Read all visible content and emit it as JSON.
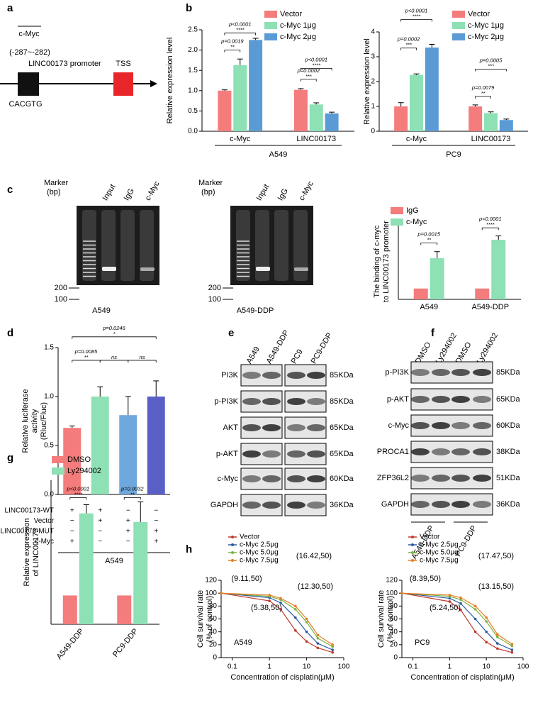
{
  "panel_labels": [
    "a",
    "b",
    "c",
    "d",
    "e",
    "f",
    "g",
    "h"
  ],
  "diagram": {
    "site": "c-Myc",
    "position": "(-287~-282)",
    "promoter": "LINC00173 promoter",
    "tss": "TSS",
    "motif": "CACGTG"
  },
  "gels": [
    {
      "marker": [
        "Marker",
        "(bp)"
      ],
      "lanes": [
        "Input",
        "IgG",
        "c-Myc"
      ],
      "sizes": [
        "200",
        "100"
      ],
      "label": "A549"
    },
    {
      "marker": [
        "Marker",
        "(bp)"
      ],
      "lanes": [
        "Input",
        "IgG",
        "c-Myc"
      ],
      "sizes": [
        "200",
        "100"
      ],
      "label": "A549-DDP"
    }
  ],
  "blots": [
    {
      "lanes": [
        "A549",
        "A549-DDP",
        "PC9",
        "PC9-DDP"
      ],
      "rows": [
        {
          "name": "PI3K",
          "size": "85KDa"
        },
        {
          "name": "p-PI3K",
          "size": "85KDa"
        },
        {
          "name": "AKT",
          "size": "65KDa"
        },
        {
          "name": "p-AKT",
          "size": "65KDa"
        },
        {
          "name": "c-Myc",
          "size": "60KDa"
        },
        {
          "name": "GAPDH",
          "size": "36KDa"
        }
      ]
    },
    {
      "lanes": [
        "DMSO",
        "Ly294002",
        "DMSO",
        "Ly294002"
      ],
      "rows": [
        {
          "name": "p-PI3K",
          "size": "85KDa"
        },
        {
          "name": "p-AKT",
          "size": "65KDa"
        },
        {
          "name": "c-Myc",
          "size": "60KDa"
        },
        {
          "name": "PROCA1",
          "size": "38KDa"
        },
        {
          "name": "ZFP36L2",
          "size": "51KDa"
        },
        {
          "name": "GAPDH",
          "size": "36KDa"
        }
      ],
      "groups": [
        "A549-DDP",
        "PC9-DDP"
      ]
    }
  ],
  "chart_data": [
    {
      "type": "bar",
      "ylabel": [
        "Relative expression level"
      ],
      "categories": [
        "c-Myc",
        "LINC00173"
      ],
      "xlabel": "A549",
      "series": [
        {
          "name": "Vector",
          "color": "#f47c7c",
          "values": [
            1.0,
            1.02
          ],
          "errors": [
            0.02,
            0.03
          ]
        },
        {
          "name": "c-Myc 1μg",
          "color": "#8ee0b5",
          "values": [
            1.63,
            0.66
          ],
          "errors": [
            0.15,
            0.04
          ]
        },
        {
          "name": "c-Myc 2μg",
          "color": "#5b9bd5",
          "values": [
            2.25,
            0.44
          ],
          "errors": [
            0.04,
            0.03
          ]
        }
      ],
      "ylim": [
        0,
        2.5
      ],
      "yticks": [
        {
          "value": 0,
          "label": "0.0"
        },
        {
          "value": 0.5,
          "label": "0.5"
        },
        {
          "value": 1,
          "label": "1.0"
        },
        {
          "value": 1.5,
          "label": "1.5"
        },
        {
          "value": 2,
          "label": "2.0"
        },
        {
          "value": 2.5,
          "label": "2.5"
        }
      ],
      "annotations": [
        {
          "p": "p<0.0001",
          "sig": "****"
        },
        {
          "p": "p=0.0019",
          "sig": "**"
        },
        {
          "p": "p<0.0001",
          "sig": "****"
        },
        {
          "p": "p=0.0002",
          "sig": "***"
        }
      ]
    },
    {
      "type": "bar",
      "ylabel": [
        "Relative expression level"
      ],
      "categories": [
        "c-Myc",
        "LINC00173"
      ],
      "xlabel": "PC9",
      "series": [
        {
          "name": "Vector",
          "color": "#f47c7c",
          "values": [
            1.0,
            1.0
          ],
          "errors": [
            0.15,
            0.06
          ]
        },
        {
          "name": "c-Myc 1μg",
          "color": "#8ee0b5",
          "values": [
            2.27,
            0.73
          ],
          "errors": [
            0.04,
            0.05
          ]
        },
        {
          "name": "c-Myc 2μg",
          "color": "#5b9bd5",
          "values": [
            3.37,
            0.45
          ],
          "errors": [
            0.13,
            0.04
          ]
        }
      ],
      "ylim": [
        0,
        4
      ],
      "yticks": [
        0,
        1,
        2,
        3,
        4
      ],
      "annotations": [
        {
          "p": "p<0.0001",
          "sig": "****"
        },
        {
          "p": "p=0.0002",
          "sig": "***"
        },
        {
          "p": "p=0.0005",
          "sig": "***"
        },
        {
          "p": "p=0.0079",
          "sig": "**"
        }
      ]
    },
    {
      "type": "bar",
      "ylabel": [
        "The binding of c-myc",
        "to LINC00173 promoter"
      ],
      "categories": [
        "A549",
        "A549-DDP"
      ],
      "series": [
        {
          "name": "IgG",
          "color": "#f47c7c",
          "values": [
            1,
            1
          ],
          "errors": [
            0,
            0
          ]
        },
        {
          "name": "c-Myc",
          "color": "#8ee0b5",
          "values": [
            3.8,
            5.5
          ],
          "errors": [
            0.6,
            0.35
          ]
        }
      ],
      "ylim": [
        0,
        7
      ],
      "annotations": [
        {
          "p": "p=0.0015",
          "sig": "**"
        },
        {
          "p": "p<0.0001",
          "sig": "****"
        }
      ]
    },
    {
      "type": "bar",
      "ylabel": [
        "Relative luciferase",
        "activity",
        "(Rluc/Fluc)"
      ],
      "xlabel": "A549",
      "values": [
        0.68,
        1.0,
        0.81,
        1.0
      ],
      "errors": [
        0.02,
        0.1,
        0.19,
        0.16
      ],
      "colors": [
        "#f47c7c",
        "#8ee0b5",
        "#6fa8dc",
        "#5a5fc8"
      ],
      "ylim": [
        0,
        1.5
      ],
      "yticks": [
        {
          "value": 0,
          "label": "0.0"
        },
        {
          "value": 0.5,
          "label": "0.5"
        },
        {
          "value": 1,
          "label": "1.0"
        },
        {
          "value": 1.5,
          "label": "1.5"
        }
      ],
      "table": [
        {
          "name": "LINC00173-WT",
          "marks": [
            "+",
            "+",
            "−",
            "−"
          ]
        },
        {
          "name": "Vector",
          "marks": [
            "−",
            "+",
            "+",
            "−"
          ]
        },
        {
          "name": "LINC00173-MUT",
          "marks": [
            "−",
            "−",
            "+",
            "+"
          ]
        },
        {
          "name": "c-Myc",
          "marks": [
            "+",
            "−",
            "−",
            "+"
          ]
        }
      ],
      "annotations": [
        {
          "p": "p=0.0246",
          "sig": "*"
        },
        {
          "p": "p=0.0085",
          "sig": "**"
        },
        {
          "sig": "ns"
        },
        {
          "sig": "ns"
        }
      ]
    },
    {
      "type": "bar",
      "ylabel": [
        "Relative expression",
        "of LINC00173"
      ],
      "categories": [
        "A549-DDP",
        "PC9-DDP"
      ],
      "series": [
        {
          "name": "DMSO",
          "color": "#f47c7c",
          "values": [
            1,
            1
          ],
          "errors": [
            0,
            0
          ]
        },
        {
          "name": "Ly294002",
          "color": "#8ee0b5",
          "values": [
            3.85,
            3.55
          ],
          "errors": [
            0.3,
            0.7
          ]
        }
      ],
      "ylim": [
        0,
        5
      ],
      "annotations": [
        {
          "p": "p<0.0001",
          "sig": "****"
        },
        {
          "p": "p=0.0032",
          "sig": "**"
        }
      ]
    },
    {
      "type": "line",
      "ylabel": [
        "Cell survival rate",
        "(% of control)"
      ],
      "xlabel": "Concentration of cisplatin(μM)",
      "label": "A549",
      "log_x": true,
      "x": [
        0.05,
        1,
        2,
        5,
        10,
        20,
        50
      ],
      "series": [
        {
          "name": "Vector",
          "color": "#c0392b",
          "values": [
            100,
            88,
            75,
            42,
            25,
            15,
            8
          ]
        },
        {
          "name": "c-Myc 2.5μg",
          "color": "#2c5aa0",
          "values": [
            100,
            93,
            85,
            62,
            40,
            22,
            12
          ]
        },
        {
          "name": "c-Myc 5.0μg",
          "color": "#7cb342",
          "values": [
            100,
            95,
            90,
            75,
            55,
            30,
            17
          ]
        },
        {
          "name": "c-Myc 7.5μg",
          "color": "#e67e22",
          "values": [
            100,
            97,
            92,
            80,
            60,
            35,
            20
          ]
        }
      ],
      "xlim": [
        0.05,
        100
      ],
      "xticks": [
        0.1,
        1,
        10,
        100
      ],
      "ylim": [
        0,
        120
      ],
      "yticks": [
        0,
        20,
        40,
        60,
        80,
        100,
        120
      ],
      "annotations": [
        {
          "text": "(9.11,50)",
          "color": "#2c5aa0"
        },
        {
          "text": "(5.38,50)",
          "color": "#c0392b"
        },
        {
          "text": "(16.42,50)",
          "color": "#e67e22"
        },
        {
          "text": "(12.30,50)",
          "color": "#7cb342"
        }
      ]
    },
    {
      "type": "line",
      "ylabel": [
        "Cell survival rate",
        "(% of control)"
      ],
      "xlabel": "Concentration of cisplatin(μM)",
      "label": "PC9",
      "log_x": true,
      "x": [
        0.05,
        1,
        2,
        5,
        10,
        20,
        50
      ],
      "series": [
        {
          "name": "Vector",
          "color": "#c0392b",
          "values": [
            100,
            87,
            74,
            40,
            24,
            14,
            8
          ]
        },
        {
          "name": "c-Myc 2.5μg",
          "color": "#2c5aa0",
          "values": [
            100,
            92,
            84,
            60,
            40,
            22,
            12
          ]
        },
        {
          "name": "c-Myc 5.0μg",
          "color": "#7cb342",
          "values": [
            100,
            95,
            90,
            75,
            56,
            32,
            18
          ]
        },
        {
          "name": "c-Myc 7.5μg",
          "color": "#e67e22",
          "values": [
            100,
            97,
            93,
            80,
            62,
            36,
            21
          ]
        }
      ],
      "xlim": [
        0.05,
        100
      ],
      "xticks": [
        0.1,
        1,
        10,
        100
      ],
      "ylim": [
        0,
        120
      ],
      "yticks": [
        0,
        20,
        40,
        60,
        80,
        100,
        120
      ],
      "annotations": [
        {
          "text": "(8.39,50)",
          "color": "#2c5aa0"
        },
        {
          "text": "(5.24,50)",
          "color": "#c0392b"
        },
        {
          "text": "(17.47,50)",
          "color": "#e67e22"
        },
        {
          "text": "(13.15,50)",
          "color": "#7cb342"
        }
      ]
    }
  ]
}
